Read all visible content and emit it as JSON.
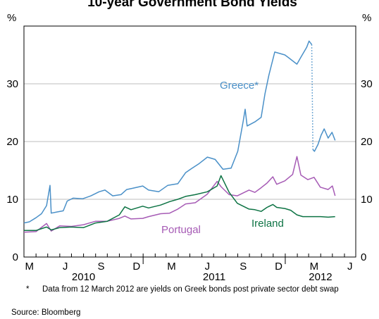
{
  "chart_data": {
    "type": "line",
    "title": "10-year Government Bond Yields",
    "y_unit_left": "%",
    "y_unit_right": "%",
    "ylim": [
      0,
      40
    ],
    "yticks": [
      0,
      10,
      20,
      30
    ],
    "xlim": [
      "2010-03-01",
      "2012-06-30"
    ],
    "x_month_ticks": [
      "M",
      "J",
      "S",
      "D",
      "M",
      "J",
      "S",
      "D",
      "M",
      "J"
    ],
    "x_year_labels": [
      "2010",
      "2011",
      "2012"
    ],
    "grid": true,
    "series": [
      {
        "name": "Greece*",
        "color": "#4a90c8",
        "points": [
          [
            "2010-03-01",
            5.9
          ],
          [
            "2010-03-15",
            6.1
          ],
          [
            "2010-04-01",
            6.8
          ],
          [
            "2010-04-15",
            7.5
          ],
          [
            "2010-04-28",
            8.9
          ],
          [
            "2010-05-07",
            12.4
          ],
          [
            "2010-05-10",
            7.6
          ],
          [
            "2010-05-25",
            7.8
          ],
          [
            "2010-06-10",
            8.0
          ],
          [
            "2010-06-20",
            9.7
          ],
          [
            "2010-07-05",
            10.2
          ],
          [
            "2010-07-30",
            10.1
          ],
          [
            "2010-08-20",
            10.6
          ],
          [
            "2010-09-10",
            11.3
          ],
          [
            "2010-09-25",
            11.6
          ],
          [
            "2010-10-15",
            10.6
          ],
          [
            "2010-11-05",
            10.8
          ],
          [
            "2010-11-20",
            11.7
          ],
          [
            "2010-12-05",
            11.9
          ],
          [
            "2010-12-31",
            12.3
          ],
          [
            "2011-01-15",
            11.6
          ],
          [
            "2011-02-10",
            11.3
          ],
          [
            "2011-03-05",
            12.4
          ],
          [
            "2011-03-31",
            12.7
          ],
          [
            "2011-04-20",
            14.6
          ],
          [
            "2011-05-05",
            15.3
          ],
          [
            "2011-05-25",
            16.2
          ],
          [
            "2011-06-15",
            17.3
          ],
          [
            "2011-07-05",
            16.9
          ],
          [
            "2011-07-25",
            15.2
          ],
          [
            "2011-08-15",
            15.4
          ],
          [
            "2011-09-01",
            18.3
          ],
          [
            "2011-09-15",
            23.5
          ],
          [
            "2011-09-20",
            25.6
          ],
          [
            "2011-09-25",
            22.7
          ],
          [
            "2011-10-15",
            23.4
          ],
          [
            "2011-10-31",
            24.2
          ],
          [
            "2011-11-10",
            28.3
          ],
          [
            "2011-11-20",
            31.5
          ],
          [
            "2011-12-05",
            35.5
          ],
          [
            "2011-12-31",
            35.0
          ],
          [
            "2012-01-10",
            34.5
          ],
          [
            "2012-01-31",
            33.4
          ],
          [
            "2012-02-10",
            34.6
          ],
          [
            "2012-02-25",
            36.3
          ],
          [
            "2012-03-02",
            37.4
          ],
          [
            "2012-03-09",
            36.8
          ]
        ]
      },
      {
        "name": "Greece*",
        "color": "#4a90c8",
        "dotted": true,
        "points": [
          [
            "2012-03-09",
            36.8
          ],
          [
            "2012-03-12",
            18.6
          ]
        ]
      },
      {
        "name": "Greece*",
        "color": "#4a90c8",
        "points": [
          [
            "2012-03-12",
            18.6
          ],
          [
            "2012-03-16",
            18.3
          ],
          [
            "2012-03-25",
            19.5
          ],
          [
            "2012-04-02",
            21.1
          ],
          [
            "2012-04-10",
            22.2
          ],
          [
            "2012-04-20",
            20.6
          ],
          [
            "2012-04-30",
            21.6
          ],
          [
            "2012-05-08",
            20.2
          ]
        ]
      },
      {
        "name": "Portugal",
        "color": "#a65bb5",
        "points": [
          [
            "2010-03-01",
            4.3
          ],
          [
            "2010-04-01",
            4.4
          ],
          [
            "2010-04-28",
            5.8
          ],
          [
            "2010-05-10",
            4.5
          ],
          [
            "2010-06-01",
            5.4
          ],
          [
            "2010-07-01",
            5.3
          ],
          [
            "2010-08-01",
            5.6
          ],
          [
            "2010-09-01",
            6.2
          ],
          [
            "2010-10-01",
            6.2
          ],
          [
            "2010-11-01",
            6.7
          ],
          [
            "2010-11-15",
            7.1
          ],
          [
            "2010-12-01",
            6.6
          ],
          [
            "2010-12-31",
            6.7
          ],
          [
            "2011-01-15",
            7.0
          ],
          [
            "2011-02-15",
            7.5
          ],
          [
            "2011-03-10",
            7.6
          ],
          [
            "2011-03-31",
            8.3
          ],
          [
            "2011-04-20",
            9.2
          ],
          [
            "2011-05-15",
            9.4
          ],
          [
            "2011-06-15",
            10.9
          ],
          [
            "2011-07-10",
            13.1
          ],
          [
            "2011-07-20",
            12.2
          ],
          [
            "2011-08-10",
            10.8
          ],
          [
            "2011-08-31",
            10.6
          ],
          [
            "2011-09-30",
            11.6
          ],
          [
            "2011-10-15",
            11.2
          ],
          [
            "2011-10-31",
            12.0
          ],
          [
            "2011-11-15",
            12.8
          ],
          [
            "2011-11-30",
            13.9
          ],
          [
            "2011-12-10",
            12.6
          ],
          [
            "2011-12-31",
            13.2
          ],
          [
            "2012-01-20",
            14.3
          ],
          [
            "2012-01-31",
            17.4
          ],
          [
            "2012-02-10",
            14.2
          ],
          [
            "2012-02-28",
            13.4
          ],
          [
            "2012-03-15",
            13.8
          ],
          [
            "2012-03-31",
            12.1
          ],
          [
            "2012-04-20",
            11.7
          ],
          [
            "2012-05-01",
            12.3
          ],
          [
            "2012-05-08",
            10.6
          ]
        ]
      },
      {
        "name": "Ireland",
        "color": "#0d7344",
        "points": [
          [
            "2010-03-01",
            4.6
          ],
          [
            "2010-04-01",
            4.6
          ],
          [
            "2010-04-28",
            5.2
          ],
          [
            "2010-05-10",
            4.7
          ],
          [
            "2010-06-01",
            5.1
          ],
          [
            "2010-07-01",
            5.2
          ],
          [
            "2010-08-01",
            5.1
          ],
          [
            "2010-09-01",
            5.9
          ],
          [
            "2010-10-01",
            6.2
          ],
          [
            "2010-11-01",
            7.3
          ],
          [
            "2010-11-15",
            8.7
          ],
          [
            "2010-12-01",
            8.2
          ],
          [
            "2010-12-31",
            8.8
          ],
          [
            "2011-01-15",
            8.5
          ],
          [
            "2011-02-15",
            9.0
          ],
          [
            "2011-03-10",
            9.6
          ],
          [
            "2011-03-31",
            10.0
          ],
          [
            "2011-04-20",
            10.5
          ],
          [
            "2011-05-15",
            10.8
          ],
          [
            "2011-06-15",
            11.3
          ],
          [
            "2011-07-10",
            12.3
          ],
          [
            "2011-07-20",
            14.1
          ],
          [
            "2011-08-10",
            11.2
          ],
          [
            "2011-08-31",
            9.3
          ],
          [
            "2011-09-30",
            8.3
          ],
          [
            "2011-10-15",
            8.2
          ],
          [
            "2011-10-31",
            7.9
          ],
          [
            "2011-11-15",
            8.6
          ],
          [
            "2011-11-30",
            9.1
          ],
          [
            "2011-12-10",
            8.6
          ],
          [
            "2011-12-31",
            8.4
          ],
          [
            "2012-01-15",
            8.1
          ],
          [
            "2012-01-31",
            7.3
          ],
          [
            "2012-02-15",
            7.0
          ],
          [
            "2012-03-15",
            7.0
          ],
          [
            "2012-04-01",
            7.0
          ],
          [
            "2012-04-20",
            6.9
          ],
          [
            "2012-05-08",
            7.0
          ]
        ]
      }
    ]
  },
  "footnote": {
    "mark": "*",
    "text": "Data from 12 March 2012 are yields on Greek bonds post private sector debt swap"
  },
  "source": "Source: Bloomberg"
}
